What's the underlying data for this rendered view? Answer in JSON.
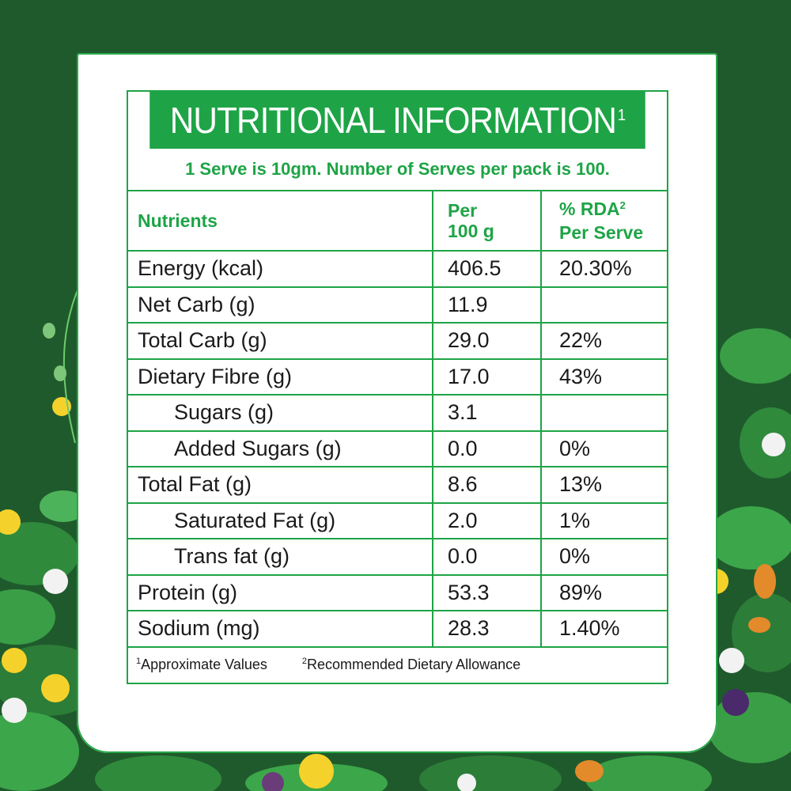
{
  "title": "NUTRITIONAL INFORMATION",
  "title_sup": "1",
  "serve_text": "1 Serve is 10gm. Number of Serves per pack is 100.",
  "header": {
    "col1": "Nutrients",
    "col2": "Per 100 g",
    "col3": "% RDA",
    "col3_sup": "2",
    "col3_sub": "Per Serve"
  },
  "rows": [
    {
      "name": "Energy (kcal)",
      "per100": "406.5",
      "rda": "20.30%",
      "indent": false
    },
    {
      "name": "Net Carb (g)",
      "per100": "11.9",
      "rda": "",
      "indent": false
    },
    {
      "name": "Total Carb (g)",
      "per100": "29.0",
      "rda": "22%",
      "indent": false
    },
    {
      "name": "Dietary Fibre (g)",
      "per100": "17.0",
      "rda": "43%",
      "indent": false
    },
    {
      "name": "Sugars (g)",
      "per100": "3.1",
      "rda": "",
      "indent": true
    },
    {
      "name": "Added Sugars (g)",
      "per100": "0.0",
      "rda": "0%",
      "indent": true
    },
    {
      "name": "Total Fat (g)",
      "per100": "8.6",
      "rda": "13%",
      "indent": false
    },
    {
      "name": "Saturated Fat (g)",
      "per100": "2.0",
      "rda": "1%",
      "indent": true
    },
    {
      "name": "Trans fat (g)",
      "per100": "0.0",
      "rda": "0%",
      "indent": true
    },
    {
      "name": "Protein (g)",
      "per100": "53.3",
      "rda": "89%",
      "indent": false
    },
    {
      "name": "Sodium (mg)",
      "per100": "28.3",
      "rda": "1.40%",
      "indent": false
    }
  ],
  "footnotes": {
    "f1_sup": "1",
    "f1": "Approximate Values",
    "f2_sup": "2",
    "f2": "Recommended Dietary Allowance"
  },
  "colors": {
    "brand_green": "#1ea446",
    "background_green": "#1f5a2c"
  }
}
